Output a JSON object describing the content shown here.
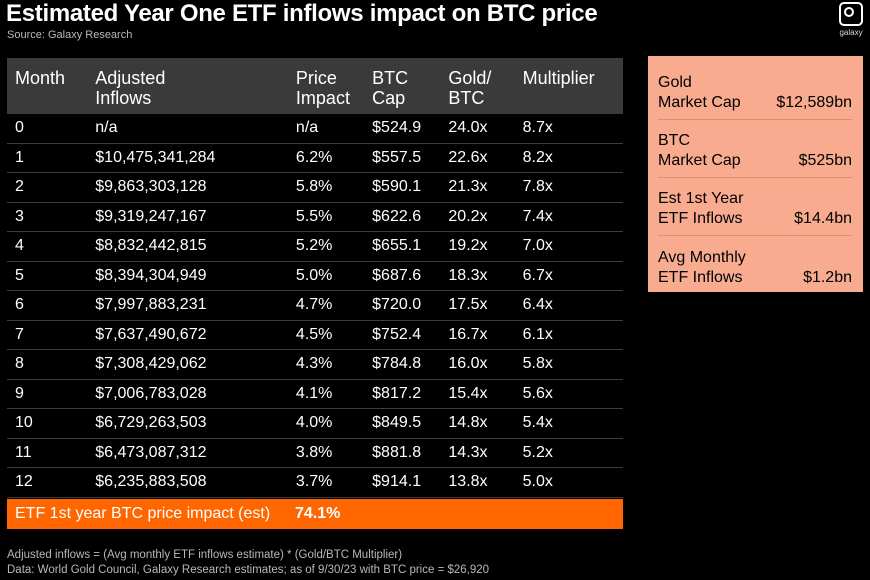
{
  "title": "Estimated Year One ETF inflows impact on BTC price",
  "source": "Source: Galaxy Research",
  "logo_text": "galaxy",
  "table": {
    "headers": [
      "Month",
      "Adjusted\nInflows",
      "Price\nImpact",
      "BTC\nCap",
      "Gold/\nBTC",
      "Multiplier"
    ],
    "rows": [
      [
        "0",
        "n/a",
        "n/a",
        "$524.9",
        "24.0x",
        "8.7x"
      ],
      [
        "1",
        "$10,475,341,284",
        "6.2%",
        "$557.5",
        "22.6x",
        "8.2x"
      ],
      [
        "2",
        "$9,863,303,128",
        "5.8%",
        "$590.1",
        "21.3x",
        "7.8x"
      ],
      [
        "3",
        "$9,319,247,167",
        "5.5%",
        "$622.6",
        "20.2x",
        "7.4x"
      ],
      [
        "4",
        "$8,832,442,815",
        "5.2%",
        "$655.1",
        "19.2x",
        "7.0x"
      ],
      [
        "5",
        "$8,394,304,949",
        "5.0%",
        "$687.6",
        "18.3x",
        "6.7x"
      ],
      [
        "6",
        "$7,997,883,231",
        "4.7%",
        "$720.0",
        "17.5x",
        "6.4x"
      ],
      [
        "7",
        "$7,637,490,672",
        "4.5%",
        "$752.4",
        "16.7x",
        "6.1x"
      ],
      [
        "8",
        "$7,308,429,062",
        "4.3%",
        "$784.8",
        "16.0x",
        "5.8x"
      ],
      [
        "9",
        "$7,006,783,028",
        "4.1%",
        "$817.2",
        "15.4x",
        "5.6x"
      ],
      [
        "10",
        "$6,729,263,503",
        "4.0%",
        "$849.5",
        "14.8x",
        "5.4x"
      ],
      [
        "11",
        "$6,473,087,312",
        "3.8%",
        "$881.8",
        "14.3x",
        "5.2x"
      ],
      [
        "12",
        "$6,235,883,508",
        "3.7%",
        "$914.1",
        "13.8x",
        "5.0x"
      ]
    ],
    "total_label": "ETF 1st year BTC price impact (est)",
    "total_value": "74.1%"
  },
  "side_panel": [
    {
      "label": "Gold\nMarket Cap",
      "value": "$12,589bn"
    },
    {
      "label": "BTC\nMarket Cap",
      "value": "$525bn"
    },
    {
      "label": "Est 1st Year\nETF Inflows",
      "value": "$14.4bn"
    },
    {
      "label": "Avg Monthly\nETF Inflows",
      "value": "$1.2bn"
    }
  ],
  "footer": [
    "Adjusted inflows = (Avg monthly ETF inflows estimate) * (Gold/BTC Multiplier)",
    "Data: World Gold Council, Galaxy Research estimates; as of 9/30/23 with BTC price = $26,920"
  ],
  "colors": {
    "background": "#000000",
    "header_row": "#3a3a3a",
    "total_row": "#ff6600",
    "side_panel": "#f9ab90"
  },
  "chart_data": {
    "type": "table",
    "title": "Estimated Year One ETF inflows impact on BTC price",
    "columns": [
      "Month",
      "Adjusted Inflows",
      "Price Impact",
      "BTC Cap",
      "Gold/BTC",
      "Multiplier"
    ],
    "month": [
      0,
      1,
      2,
      3,
      4,
      5,
      6,
      7,
      8,
      9,
      10,
      11,
      12
    ],
    "adjusted_inflows": [
      null,
      10475341284,
      9863303128,
      9319247167,
      8832442815,
      8394304949,
      7997883231,
      7637490672,
      7308429062,
      7006783028,
      6729263503,
      6473087312,
      6235883508
    ],
    "price_impact_pct": [
      null,
      6.2,
      5.8,
      5.5,
      5.2,
      5.0,
      4.7,
      4.5,
      4.3,
      4.1,
      4.0,
      3.8,
      3.7
    ],
    "btc_cap": [
      524.9,
      557.5,
      590.1,
      622.6,
      655.1,
      687.6,
      720.0,
      752.4,
      784.8,
      817.2,
      849.5,
      881.8,
      914.1
    ],
    "gold_btc": [
      24.0,
      22.6,
      21.3,
      20.2,
      19.2,
      18.3,
      17.5,
      16.7,
      16.0,
      15.4,
      14.8,
      14.3,
      13.8
    ],
    "multiplier": [
      8.7,
      8.2,
      7.8,
      7.4,
      7.0,
      6.7,
      6.4,
      6.1,
      5.8,
      5.6,
      5.4,
      5.2,
      5.0
    ],
    "total_price_impact_pct": 74.1
  }
}
